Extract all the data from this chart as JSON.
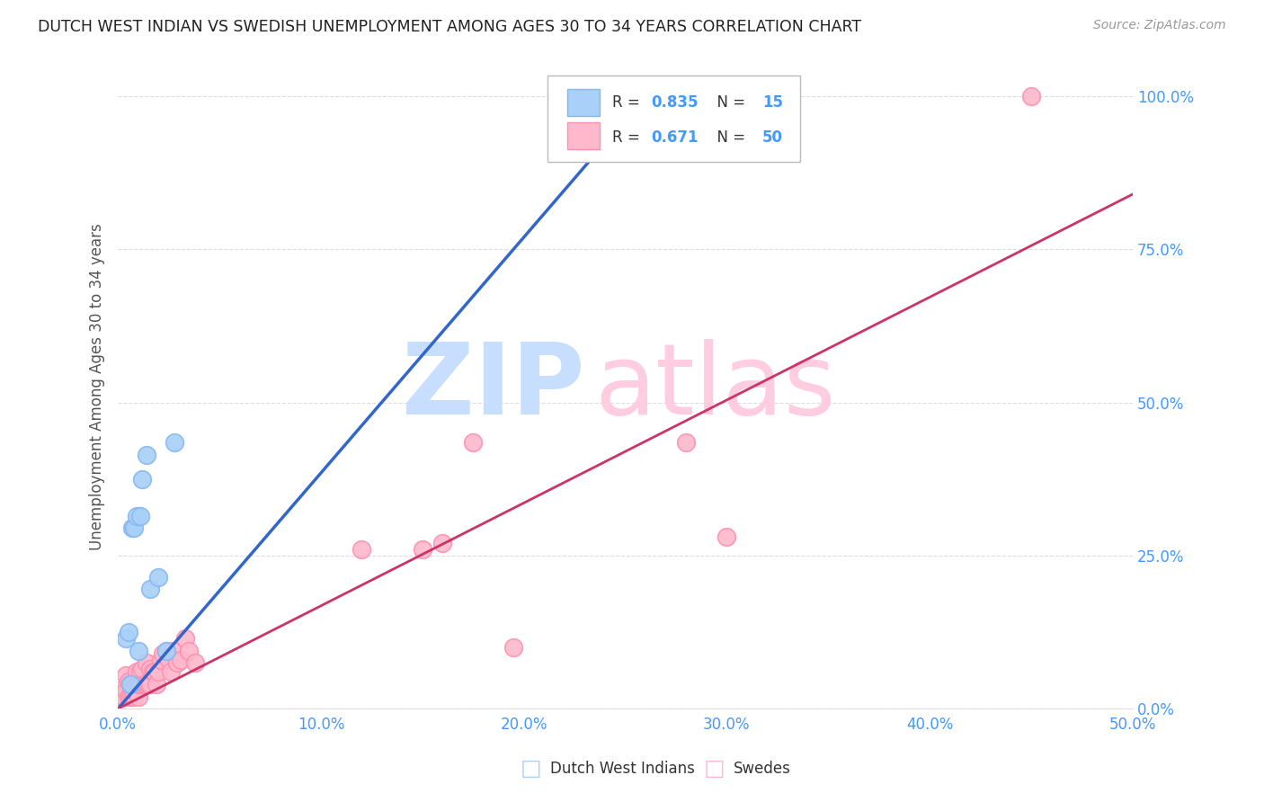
{
  "title": "DUTCH WEST INDIAN VS SWEDISH UNEMPLOYMENT AMONG AGES 30 TO 34 YEARS CORRELATION CHART",
  "source": "Source: ZipAtlas.com",
  "ylabel": "Unemployment Among Ages 30 to 34 years",
  "xlim": [
    0.0,
    0.5
  ],
  "ylim": [
    0.0,
    1.05
  ],
  "xticks": [
    0.0,
    0.1,
    0.2,
    0.3,
    0.4,
    0.5
  ],
  "xticklabels": [
    "0.0%",
    "10.0%",
    "20.0%",
    "30.0%",
    "40.0%",
    "50.0%"
  ],
  "yticks": [
    0.0,
    0.25,
    0.5,
    0.75,
    1.0
  ],
  "yticklabels": [
    "0.0%",
    "25.0%",
    "50.0%",
    "75.0%",
    "100.0%"
  ],
  "r_blue": "0.835",
  "n_blue": "15",
  "r_pink": "0.671",
  "n_pink": "50",
  "blue_scatter_x": [
    0.004,
    0.005,
    0.006,
    0.007,
    0.008,
    0.009,
    0.01,
    0.011,
    0.012,
    0.014,
    0.016,
    0.02,
    0.024,
    0.028,
    0.24
  ],
  "blue_scatter_y": [
    0.115,
    0.125,
    0.04,
    0.295,
    0.295,
    0.315,
    0.095,
    0.315,
    0.375,
    0.415,
    0.195,
    0.215,
    0.095,
    0.435,
    1.0
  ],
  "pink_scatter_x": [
    0.001,
    0.002,
    0.003,
    0.004,
    0.004,
    0.005,
    0.005,
    0.006,
    0.006,
    0.007,
    0.007,
    0.008,
    0.008,
    0.009,
    0.009,
    0.01,
    0.01,
    0.011,
    0.011,
    0.012,
    0.012,
    0.013,
    0.014,
    0.014,
    0.015,
    0.016,
    0.016,
    0.017,
    0.018,
    0.019,
    0.02,
    0.021,
    0.022,
    0.024,
    0.025,
    0.026,
    0.027,
    0.029,
    0.031,
    0.033,
    0.035,
    0.038,
    0.12,
    0.15,
    0.16,
    0.175,
    0.195,
    0.28,
    0.3,
    0.45
  ],
  "pink_scatter_y": [
    0.03,
    0.02,
    0.02,
    0.03,
    0.055,
    0.02,
    0.045,
    0.02,
    0.04,
    0.02,
    0.04,
    0.02,
    0.045,
    0.04,
    0.06,
    0.02,
    0.04,
    0.04,
    0.06,
    0.04,
    0.065,
    0.04,
    0.04,
    0.075,
    0.04,
    0.04,
    0.065,
    0.06,
    0.06,
    0.04,
    0.06,
    0.08,
    0.09,
    0.095,
    0.08,
    0.06,
    0.095,
    0.075,
    0.08,
    0.115,
    0.095,
    0.075,
    0.26,
    0.26,
    0.27,
    0.435,
    0.1,
    0.435,
    0.28,
    1.0
  ],
  "blue_line_x": [
    0.0,
    0.265
  ],
  "blue_line_y": [
    0.0,
    1.02
  ],
  "pink_line_x": [
    0.0,
    0.5
  ],
  "pink_line_y": [
    0.0,
    0.84
  ],
  "blue_dot_color": "#A8D0F8",
  "blue_dot_edge": "#85B8F0",
  "blue_line_color": "#3366CC",
  "pink_dot_color": "#FFB8CC",
  "pink_dot_edge": "#FF90B0",
  "pink_line_color": "#CC3366",
  "watermark_zip_color": "#C8DEFF",
  "watermark_atlas_color": "#FFCCE0",
  "background_color": "#FFFFFF",
  "grid_color": "#DDDDDD",
  "title_color": "#222222",
  "axis_label_color": "#555555",
  "tick_color": "#4499FF",
  "legend_number_color": "#4499FF",
  "legend_text_color": "#333333"
}
